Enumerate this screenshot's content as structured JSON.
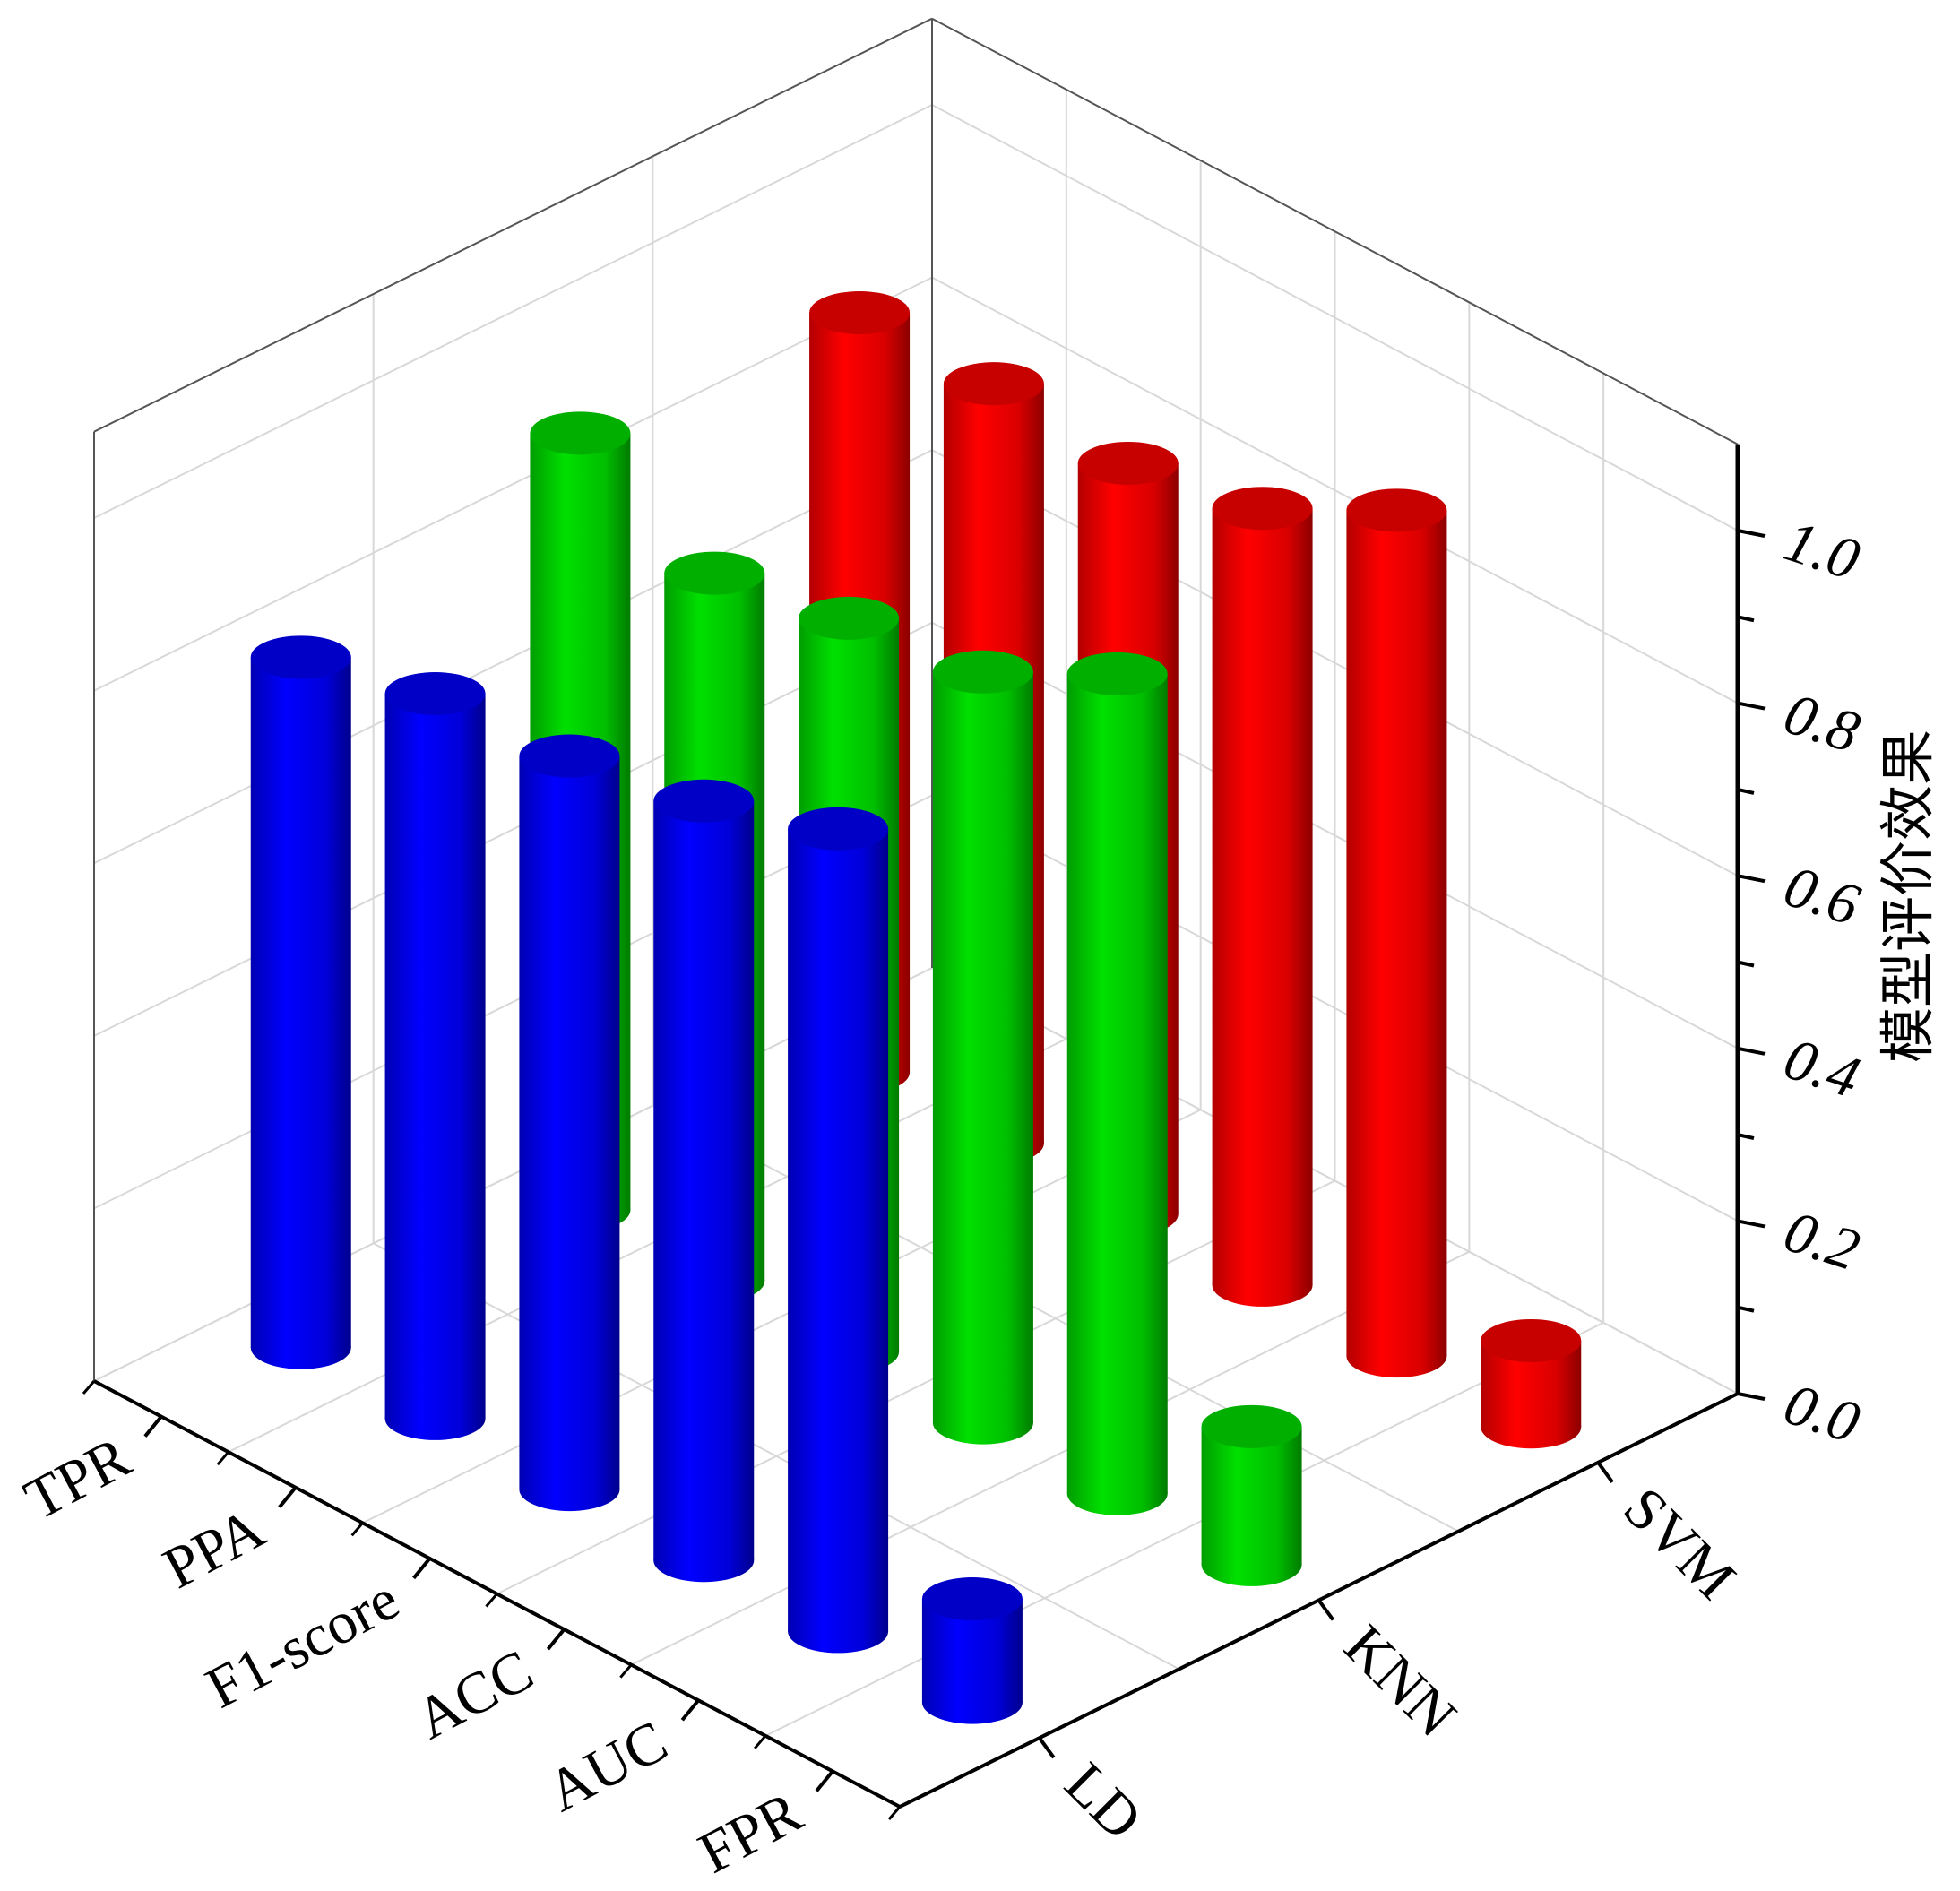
{
  "chart_data": {
    "type": "bar3d",
    "title": "",
    "zlabel": "模型评价效果",
    "metrics": [
      "TPR",
      "PPA",
      "F1-score",
      "ACC",
      "AUC",
      "FPR"
    ],
    "models": [
      "LD",
      "KNN",
      "SVM"
    ],
    "zlim": [
      0,
      1.1
    ],
    "zticks": [
      "0.0",
      "0.2",
      "0.4",
      "0.6",
      "0.8",
      "1.0"
    ],
    "grid": true,
    "bar_shape": "cylinder",
    "series": [
      {
        "model": "LD",
        "color": "#0000ff",
        "values": [
          0.8,
          0.84,
          0.85,
          0.88,
          0.93,
          0.12
        ]
      },
      {
        "model": "KNN",
        "color": "#00e000",
        "values": [
          0.9,
          0.82,
          0.85,
          0.87,
          0.95,
          0.16
        ]
      },
      {
        "model": "SVM",
        "color": "#ff0000",
        "values": [
          0.88,
          0.88,
          0.87,
          0.9,
          0.98,
          0.1
        ]
      }
    ]
  }
}
